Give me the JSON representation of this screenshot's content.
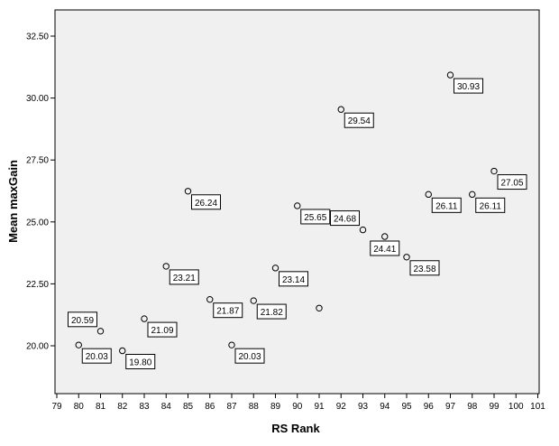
{
  "chart_data": {
    "type": "scatter",
    "xlabel": "RS Rank",
    "ylabel": "Mean maxGain",
    "xlim": [
      79,
      101
    ],
    "ylim": [
      18.3,
      33.8
    ],
    "x_ticks": [
      "79",
      "80",
      "81",
      "82",
      "83",
      "84",
      "85",
      "86",
      "87",
      "88",
      "89",
      "90",
      "91",
      "92",
      "93",
      "94",
      "95",
      "96",
      "97",
      "98",
      "99",
      "100",
      "101"
    ],
    "y_ticks": [
      "20.00",
      "22.50",
      "25.00",
      "27.50",
      "30.00",
      "32.50"
    ],
    "plot_background": "#f0f0f0",
    "marker_color": "#000000",
    "grid": false,
    "points": [
      {
        "x": 80,
        "y": 20.03,
        "label": "20.03",
        "label_pos": "right"
      },
      {
        "x": 81,
        "y": 20.59,
        "label": "20.59",
        "label_pos": "left"
      },
      {
        "x": 82,
        "y": 19.8,
        "label": "19.80",
        "label_pos": "right"
      },
      {
        "x": 83,
        "y": 21.09,
        "label": "21.09",
        "label_pos": "right"
      },
      {
        "x": 84,
        "y": 23.21,
        "label": "23.21",
        "label_pos": "right"
      },
      {
        "x": 85,
        "y": 26.24,
        "label": "26.24",
        "label_pos": "right"
      },
      {
        "x": 86,
        "y": 21.87,
        "label": "21.87",
        "label_pos": "right"
      },
      {
        "x": 87,
        "y": 20.03,
        "label": "20.03",
        "label_pos": "right"
      },
      {
        "x": 88,
        "y": 21.82,
        "label": "21.82",
        "label_pos": "right"
      },
      {
        "x": 89,
        "y": 23.14,
        "label": "23.14",
        "label_pos": "right"
      },
      {
        "x": 90,
        "y": 25.65,
        "label": "25.65",
        "label_pos": "right"
      },
      {
        "x": 91,
        "y": 21.52,
        "label": "",
        "label_pos": "none"
      },
      {
        "x": 92,
        "y": 29.54,
        "label": "29.54",
        "label_pos": "right"
      },
      {
        "x": 93,
        "y": 24.68,
        "label": "24.68",
        "label_pos": "left"
      },
      {
        "x": 94,
        "y": 24.41,
        "label": "24.41",
        "label_pos": "below"
      },
      {
        "x": 95,
        "y": 23.58,
        "label": "23.58",
        "label_pos": "right"
      },
      {
        "x": 96,
        "y": 26.11,
        "label": "26.11",
        "label_pos": "right"
      },
      {
        "x": 97,
        "y": 30.93,
        "label": "30.93",
        "label_pos": "right"
      },
      {
        "x": 98,
        "y": 26.11,
        "label": "26.11",
        "label_pos": "right"
      },
      {
        "x": 99,
        "y": 27.05,
        "label": "27.05",
        "label_pos": "right"
      }
    ]
  }
}
